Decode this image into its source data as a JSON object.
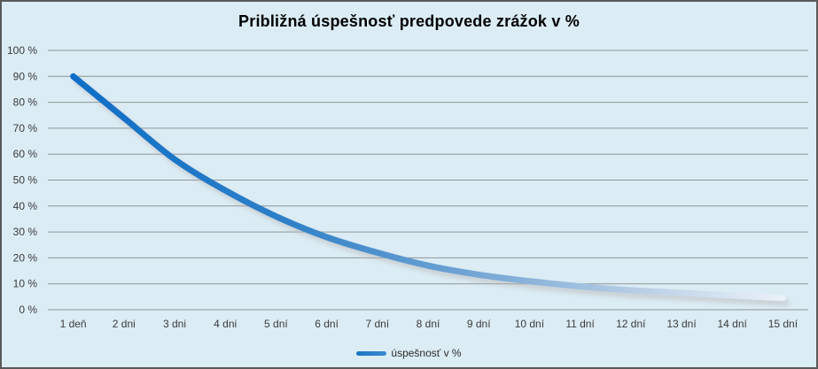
{
  "chart_data": {
    "type": "line",
    "title": "Približná úspešnosť predpovede zrážok v %",
    "categories": [
      "1 deň",
      "2 dni",
      "3 dni",
      "4 dni",
      "5 dní",
      "6 dní",
      "7 dní",
      "8 dní",
      "9 dní",
      "10 dní",
      "11 dní",
      "12 dní",
      "13 dní",
      "14 dní",
      "15 dní"
    ],
    "series": [
      {
        "name": "úspešnosť v %",
        "values": [
          90,
          74,
          58,
          46,
          36,
          28,
          22,
          17,
          13.5,
          11,
          9,
          7.5,
          6.5,
          5.5,
          4.5
        ]
      }
    ],
    "xlabel": "",
    "ylabel": "",
    "ylim": [
      0,
      100
    ],
    "grid": true,
    "legend_position": "bottom",
    "y_ticks": [
      {
        "value": 0,
        "label": "0 %"
      },
      {
        "value": 10,
        "label": "10 %"
      },
      {
        "value": 20,
        "label": "20 %"
      },
      {
        "value": 30,
        "label": "30 %"
      },
      {
        "value": 40,
        "label": "40 %"
      },
      {
        "value": 50,
        "label": "50 %"
      },
      {
        "value": 60,
        "label": "60 %"
      },
      {
        "value": 70,
        "label": "70 %"
      },
      {
        "value": 80,
        "label": "80 %"
      },
      {
        "value": 90,
        "label": "90 %"
      },
      {
        "value": 100,
        "label": "100 %"
      }
    ],
    "styles": {
      "background": "#dbecf4",
      "frame_border": "#595959",
      "gridline_color": "#8f9697",
      "axis_line_color": "#8f9697",
      "tick_label_color": "#3b3b3b",
      "title_color": "#000000",
      "line_width": 7,
      "line_gradient": [
        {
          "offset": 0,
          "color": "#0d6ec6"
        },
        {
          "offset": 0.3,
          "color": "#2e80c8"
        },
        {
          "offset": 0.55,
          "color": "#6fa3d4"
        },
        {
          "offset": 0.8,
          "color": "#b9cfe5"
        },
        {
          "offset": 1,
          "color": "#eaf1f8"
        }
      ],
      "legend_swatch_color": "#1b74c5",
      "shadow_color": "#787878"
    }
  }
}
